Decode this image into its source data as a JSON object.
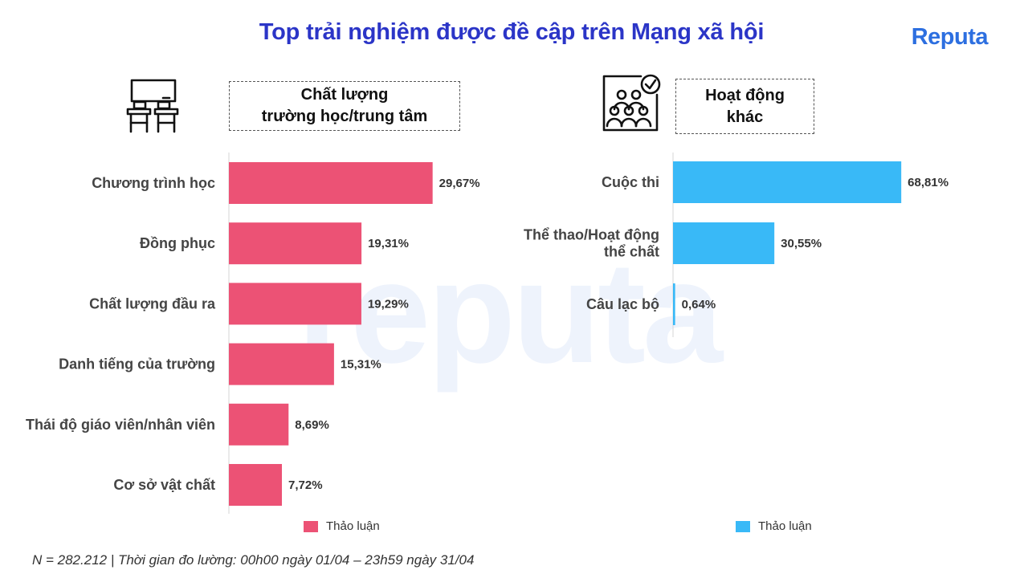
{
  "title": "Top trải nghiệm được đề cập trên Mạng xã hội",
  "logo": "Reputa",
  "watermark": "reputa",
  "footnote": "N = 282.212 | Thời gian đo lường: 00h00 ngày 01/04 – 23h59 ngày 31/04",
  "colors": {
    "left": "#ec5275",
    "right": "#39b9f7",
    "title": "#2b35c7"
  },
  "chart_data": [
    {
      "type": "bar",
      "orientation": "horizontal",
      "title": "Chất lượng\ntrường học/trung tâm",
      "icon": "classroom-icon",
      "categories": [
        "Chương trình học",
        "Đồng phục",
        "Chất lượng đầu ra",
        "Danh tiếng của trường",
        "Thái độ giáo viên/nhân viên",
        "Cơ sở vật chất"
      ],
      "category_lines": [
        [
          "Chương trình học"
        ],
        [
          "Đồng phục"
        ],
        [
          "Chất lượng đầu ra"
        ],
        [
          "Danh tiếng của trường"
        ],
        [
          "Thái độ giáo viên/nhân viên"
        ],
        [
          "Cơ sở vật chất"
        ]
      ],
      "values": [
        29.67,
        19.31,
        19.29,
        15.31,
        8.69,
        7.72
      ],
      "value_labels": [
        "29,67%",
        "19,31%",
        "19,29%",
        "15,31%",
        "8,69%",
        "7,72%"
      ],
      "series": [
        {
          "name": "Thảo luận",
          "values": [
            29.67,
            19.31,
            19.29,
            15.31,
            8.69,
            7.72
          ]
        }
      ],
      "legend": "bottom"
    },
    {
      "type": "bar",
      "orientation": "horizontal",
      "title": "Hoạt động\nkhác",
      "icon": "group-activity-icon",
      "categories": [
        "Cuộc thi",
        "Thể thao/Hoạt động thể chất",
        "Câu lạc bộ"
      ],
      "category_lines": [
        [
          "Cuộc thi"
        ],
        [
          "Thể thao/Hoạt động",
          "thể chất"
        ],
        [
          "Câu lạc bộ"
        ]
      ],
      "values": [
        68.81,
        30.55,
        0.64
      ],
      "value_labels": [
        "68,81%",
        "30,55%",
        "0,64%"
      ],
      "series": [
        {
          "name": "Thảo luận",
          "values": [
            68.81,
            30.55,
            0.64
          ]
        }
      ],
      "legend": "bottom"
    }
  ]
}
